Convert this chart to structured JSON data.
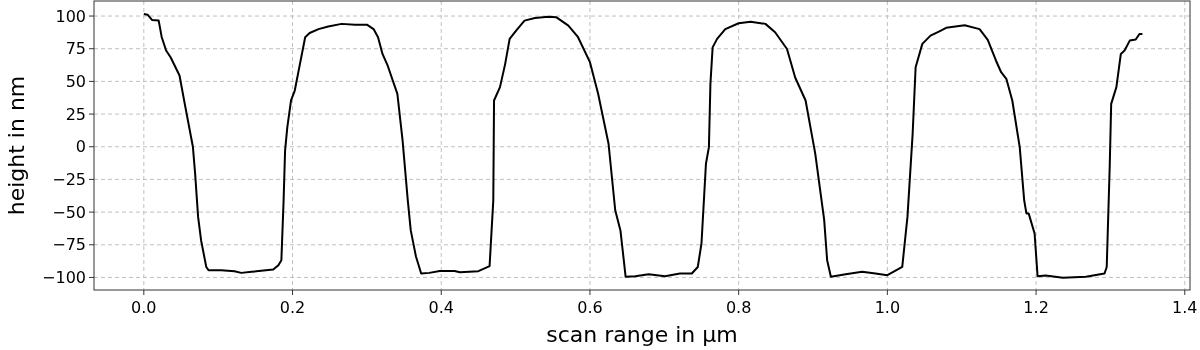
{
  "chart_data": {
    "type": "line",
    "xlabel": "scan range in µm",
    "ylabel": "height in nm",
    "xlim": [
      -0.067,
      1.407
    ],
    "ylim": [
      -109.6,
      111.5
    ],
    "xticks": [
      {
        "value": 0,
        "label": "0.0"
      },
      {
        "value": 0.2,
        "label": "0.2"
      },
      {
        "value": 0.4,
        "label": "0.4"
      },
      {
        "value": 0.6,
        "label": "0.6"
      },
      {
        "value": 0.8,
        "label": "0.8"
      },
      {
        "value": 1,
        "label": "1.0"
      },
      {
        "value": 1.2,
        "label": "1.2"
      },
      {
        "value": 1.4,
        "label": "1.4"
      }
    ],
    "yticks": [
      -100,
      -75,
      -50,
      -25,
      0,
      25,
      50,
      75,
      100
    ],
    "grid": true,
    "line_style": "solid",
    "marker": "none",
    "series": [
      {
        "color": "#000000",
        "x": [
          0,
          0.005,
          0.011,
          0.02,
          0.024,
          0.03,
          0.036,
          0.048,
          0.055,
          0.066,
          0.069,
          0.073,
          0.077,
          0.084,
          0.087,
          0.104,
          0.122,
          0.131,
          0.145,
          0.174,
          0.181,
          0.185,
          0.188,
          0.19,
          0.193,
          0.198,
          0.203,
          0.21,
          0.217,
          0.223,
          0.235,
          0.248,
          0.266,
          0.284,
          0.3,
          0.309,
          0.315,
          0.321,
          0.328,
          0.341,
          0.348,
          0.355,
          0.359,
          0.366,
          0.373,
          0.384,
          0.398,
          0.418,
          0.425,
          0.45,
          0.465,
          0.47,
          0.471,
          0.479,
          0.486,
          0.492,
          0.501,
          0.512,
          0.526,
          0.544,
          0.555,
          0.571,
          0.584,
          0.6,
          0.611,
          0.625,
          0.634,
          0.641,
          0.648,
          0.661,
          0.679,
          0.701,
          0.721,
          0.737,
          0.745,
          0.75,
          0.756,
          0.76,
          0.762,
          0.765,
          0.771,
          0.782,
          0.8,
          0.816,
          0.836,
          0.849,
          0.865,
          0.876,
          0.89,
          0.903,
          0.915,
          0.919,
          0.924,
          0.944,
          0.966,
          0.984,
          1.0,
          1.02,
          1.027,
          1.034,
          1.038,
          1.047,
          1.058,
          1.07,
          1.079,
          1.104,
          1.124,
          1.135,
          1.146,
          1.153,
          1.16,
          1.168,
          1.178,
          1.184,
          1.187,
          1.19,
          1.198,
          1.202,
          1.213,
          1.236,
          1.267,
          1.292,
          1.295,
          1.299,
          1.301,
          1.308,
          1.314,
          1.319,
          1.326,
          1.334,
          1.339,
          1.343
        ],
        "values": [
          101.6,
          101,
          97,
          96.5,
          84,
          73.6,
          68.5,
          54.5,
          33,
          0,
          -20.6,
          -53.7,
          -71.5,
          -92,
          -94.4,
          -94.4,
          -95.2,
          -96.5,
          -95.7,
          -94,
          -90.6,
          -86.8,
          -41,
          -2.8,
          15,
          35.4,
          43,
          63.4,
          83.8,
          87,
          90,
          92,
          94,
          93.4,
          93.4,
          90,
          83.8,
          71,
          62,
          40.5,
          4.8,
          -41,
          -64,
          -84,
          -97,
          -96.5,
          -95,
          -95,
          -96,
          -95.2,
          -91.4,
          -41,
          35.4,
          45.6,
          63.4,
          82.5,
          89,
          96.5,
          98.5,
          99.5,
          99,
          92.7,
          83.8,
          64.7,
          40.5,
          2.3,
          -48.6,
          -64,
          -99.5,
          -99,
          -97.5,
          -99,
          -97,
          -97,
          -92,
          -74,
          -13,
          -0.3,
          48,
          76,
          82.5,
          90,
          94.5,
          95.7,
          94,
          87.6,
          74.8,
          53,
          35.4,
          -5.3,
          -56,
          -86.8,
          -99.5,
          -97.5,
          -95.7,
          -97,
          -98.3,
          -92,
          -53.7,
          10,
          60.8,
          78.7,
          85,
          88.3,
          91,
          93,
          90,
          81.7,
          66,
          57,
          52,
          35.4,
          -0.3,
          -41,
          -51,
          -51,
          -66.4,
          -99,
          -98.5,
          -100.3,
          -99.5,
          -97,
          -92,
          -15.5,
          32.8,
          45.6,
          71,
          73.6,
          81.2,
          82,
          86.3,
          86.3
        ]
      }
    ]
  }
}
